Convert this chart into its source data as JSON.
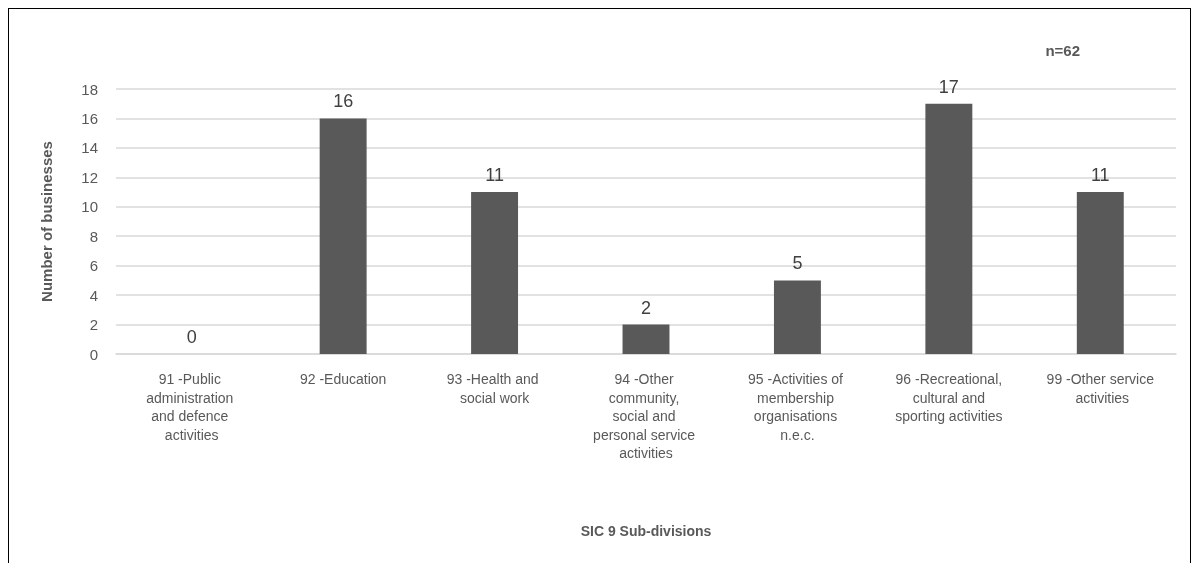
{
  "chart_data": {
    "type": "bar",
    "xlabel": "SIC 9 Sub-divisions",
    "ylabel": "Number of businesses",
    "categories": [
      "91 -Public administration and defence activities",
      "92 -Education",
      "93 -Health and social work",
      "94 -Other community, social and personal service activities",
      "95 -Activities of membership organisations n.e.c.",
      "96 -Recreational, cultural and sporting activities",
      "99 -Other service activities"
    ],
    "values": [
      0,
      16,
      11,
      2,
      5,
      17,
      11
    ],
    "color": "#595959",
    "ylim": [
      0,
      18
    ],
    "yticks": [
      0,
      2,
      4,
      6,
      8,
      10,
      12,
      14,
      16,
      18
    ],
    "grid": "y",
    "data_labels": true,
    "annotations": [
      "n=62"
    ]
  }
}
